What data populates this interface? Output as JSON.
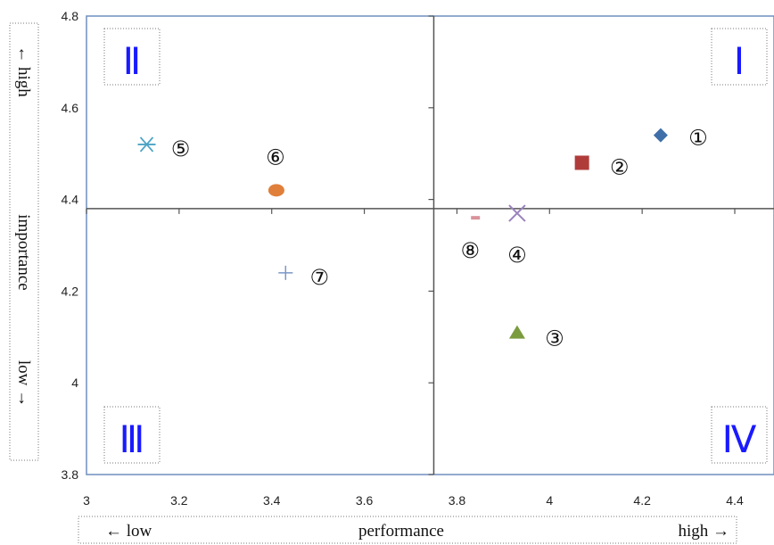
{
  "chart_data": {
    "type": "scatter",
    "title": "",
    "x_axis": {
      "range": [
        3,
        4.4
      ],
      "ticks": [
        "3",
        "3.2",
        "3.4",
        "3.6",
        "3.8",
        "4",
        "4.2",
        "4.4"
      ],
      "label_left": "← low",
      "label_center": "performance",
      "label_right": "high →"
    },
    "y_axis": {
      "range": [
        3.8,
        4.8
      ],
      "ticks": [
        "3.8",
        "4",
        "4.2",
        "4.4",
        "4.6",
        "4.8"
      ],
      "label_top": "← high",
      "label_center": "importance",
      "label_bottom": "low →"
    },
    "divider": {
      "x": 3.75,
      "y": 4.38
    },
    "quadrants": [
      {
        "id": "I",
        "label": "Ⅰ",
        "position": "top-right"
      },
      {
        "id": "II",
        "label": "Ⅱ",
        "position": "top-left"
      },
      {
        "id": "III",
        "label": "Ⅲ",
        "position": "bottom-left"
      },
      {
        "id": "IV",
        "label": "Ⅳ",
        "position": "bottom-right"
      }
    ],
    "points": [
      {
        "label": "①",
        "x": 4.24,
        "y": 4.54,
        "marker": "diamond",
        "color": "#3f6fa8"
      },
      {
        "label": "②",
        "x": 4.07,
        "y": 4.48,
        "marker": "square",
        "color": "#b03c3a"
      },
      {
        "label": "③",
        "x": 3.93,
        "y": 4.11,
        "marker": "triangle",
        "color": "#7b9b3f"
      },
      {
        "label": "④",
        "x": 3.93,
        "y": 4.37,
        "marker": "x",
        "color": "#9a83bd"
      },
      {
        "label": "⑤",
        "x": 3.13,
        "y": 4.52,
        "marker": "asterisk",
        "color": "#4aa3c4"
      },
      {
        "label": "⑥",
        "x": 3.41,
        "y": 4.42,
        "marker": "circle",
        "color": "#e07f3a"
      },
      {
        "label": "⑦",
        "x": 3.43,
        "y": 4.24,
        "marker": "plus",
        "color": "#7a97c8"
      },
      {
        "label": "⑧",
        "x": 3.84,
        "y": 4.36,
        "marker": "dash",
        "color": "#d9939a"
      }
    ]
  }
}
